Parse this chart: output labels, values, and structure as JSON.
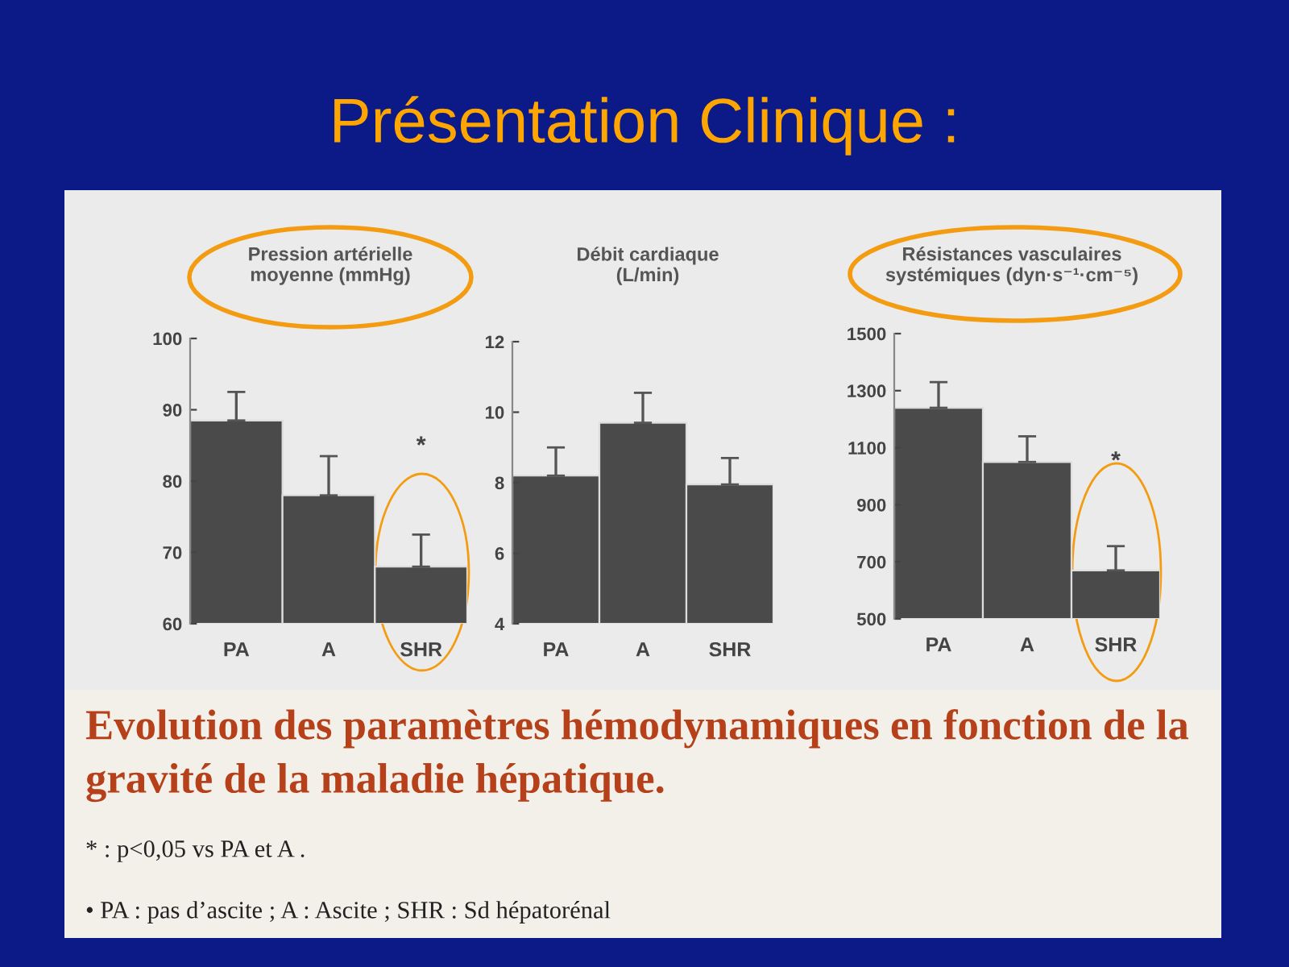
{
  "chart_data": [
    {
      "type": "bar",
      "title": "Pression artérielle\nmoyenne (mmHg)",
      "categories": [
        "PA",
        "A",
        "SHR"
      ],
      "values": [
        88.5,
        78,
        68
      ],
      "color": "#4a4a4a",
      "errors": [
        [
          88.5,
          92.5
        ],
        [
          78,
          83.5
        ],
        [
          68,
          72.5
        ]
      ],
      "ylim": [
        60,
        100
      ],
      "yticks": [
        60,
        70,
        80,
        90,
        100
      ],
      "grid": false,
      "legend": false,
      "annotations": [
        "Présentation Clinique :",
        "Evolution des paramètres hémodynamiques en fonction de la   gravité de la maladie hépatique.",
        "* : p<0,05 vs PA et A .",
        "• PA : pas d’ascite ; A : Ascite ; SHR : Sd hépatorénal",
        "*"
      ]
    },
    {
      "type": "bar",
      "title": "Débit cardiaque\n(L/min)",
      "categories": [
        "PA",
        "A",
        "SHR"
      ],
      "values": [
        8.2,
        9.7,
        7.95
      ],
      "color": "#4a4a4a",
      "errors": [
        [
          8.2,
          9.0
        ],
        [
          9.7,
          10.55
        ],
        [
          7.95,
          8.7
        ]
      ],
      "ylim": [
        4,
        12
      ],
      "yticks": [
        4,
        6,
        8,
        10,
        12
      ],
      "grid": false,
      "legend": false
    },
    {
      "type": "bar",
      "title": "Résistances vasculaires\nsystémiques (dyn·s⁻¹·cm⁻⁵)",
      "categories": [
        "PA",
        "A",
        "SHR"
      ],
      "values": [
        1240,
        1050,
        670
      ],
      "color": "#4a4a4a",
      "errors": [
        [
          1240,
          1330
        ],
        [
          1050,
          1140
        ],
        [
          670,
          755
        ]
      ],
      "ylim": [
        500,
        1500
      ],
      "yticks": [
        500,
        700,
        900,
        1100,
        1300,
        1500
      ],
      "grid": false,
      "legend": false,
      "annotations": [
        "*"
      ]
    }
  ]
}
